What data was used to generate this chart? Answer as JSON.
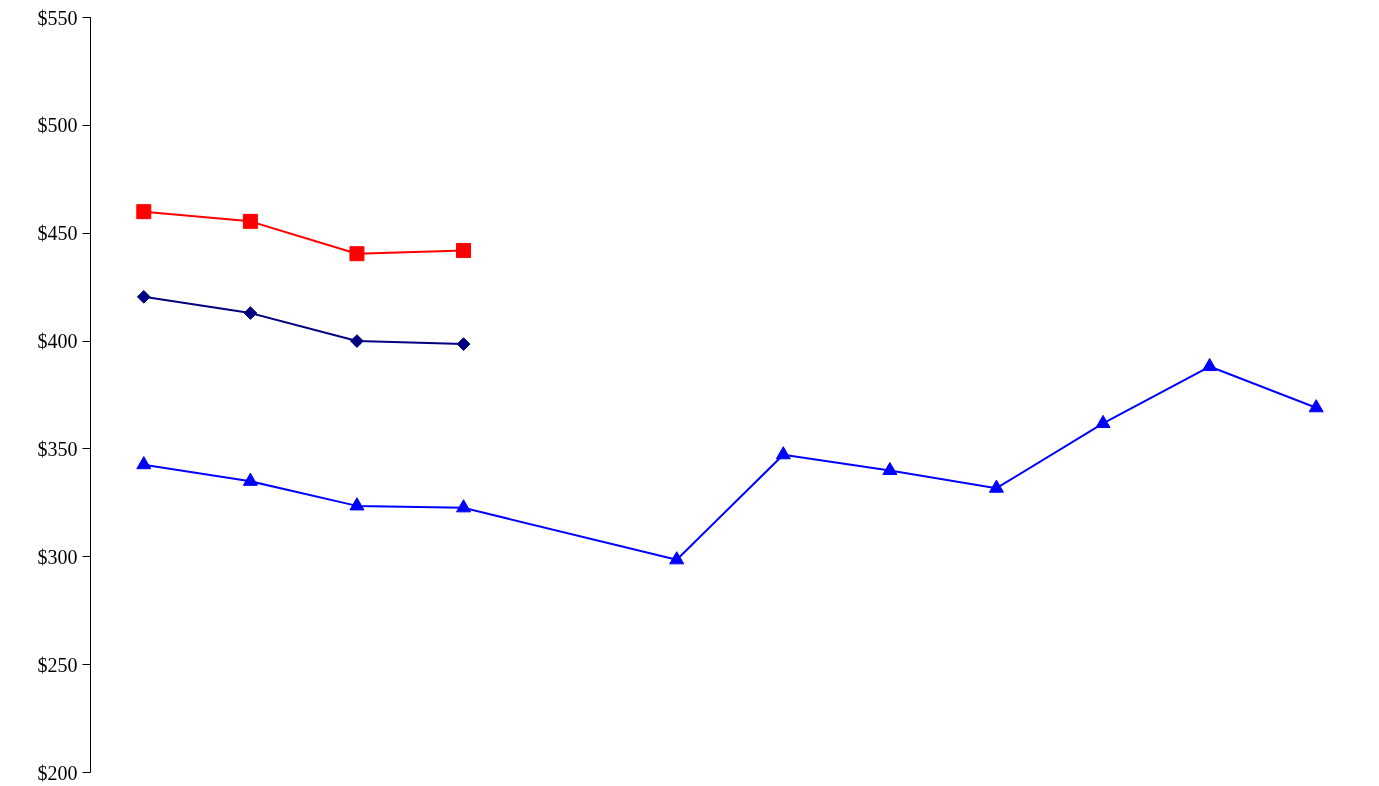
{
  "chart_data": {
    "type": "line",
    "categories": [
      null,
      null,
      null,
      null,
      null,
      null,
      null,
      null,
      null,
      null,
      null,
      null
    ],
    "series": [
      {
        "color": "#ff0000",
        "marker": "square",
        "values": [
          460,
          455.5,
          440.5,
          442,
          null,
          null,
          null,
          null,
          null,
          null,
          null,
          null
        ]
      },
      {
        "color": "#000080",
        "marker": "diamond",
        "values": [
          420.5,
          413,
          400,
          398.6,
          null,
          null,
          null,
          null,
          null,
          null,
          null,
          null
        ]
      },
      {
        "color": "#0000ff",
        "marker": "triangle",
        "values": [
          342.7,
          335,
          323.6,
          322.7,
          null,
          298.6,
          347.3,
          340,
          331.8,
          361.8,
          388.2,
          369.1
        ]
      }
    ],
    "ylim": [
      200,
      550
    ],
    "yticks": [
      {
        "value": 200,
        "label": "$200"
      },
      {
        "value": 250,
        "label": "$250"
      },
      {
        "value": 300,
        "label": "$300"
      },
      {
        "value": 350,
        "label": "$350"
      },
      {
        "value": 400,
        "label": "$400"
      },
      {
        "value": 450,
        "label": "$450"
      },
      {
        "value": 500,
        "label": "$500"
      },
      {
        "value": 550,
        "label": "$550"
      }
    ],
    "grid": false,
    "tick_labels": "y",
    "line_style": "solid"
  }
}
